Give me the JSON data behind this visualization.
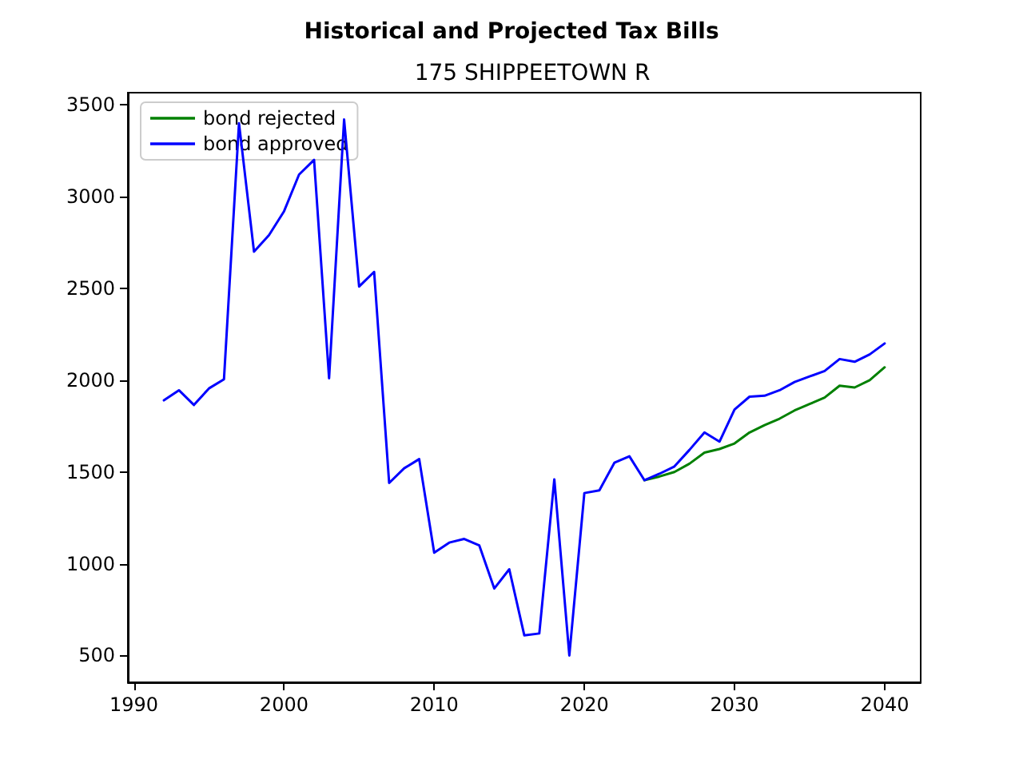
{
  "chart_data": {
    "type": "line",
    "title": "Historical and Projected Tax Bills",
    "subtitle": "175 SHIPPEETOWN R",
    "x": [
      1992,
      1993,
      1994,
      1995,
      1996,
      1997,
      1998,
      1999,
      2000,
      2001,
      2002,
      2003,
      2004,
      2005,
      2006,
      2007,
      2008,
      2009,
      2010,
      2011,
      2012,
      2013,
      2014,
      2015,
      2016,
      2017,
      2018,
      2019,
      2020,
      2021,
      2022,
      2023,
      2024,
      2025,
      2026,
      2027,
      2028,
      2029,
      2030,
      2031,
      2032,
      2033,
      2034,
      2035,
      2036,
      2037,
      2038,
      2039,
      2040
    ],
    "series": [
      {
        "name": "bond rejected",
        "color": "#008000",
        "values": [
          null,
          null,
          null,
          null,
          null,
          null,
          null,
          null,
          null,
          null,
          null,
          null,
          null,
          null,
          null,
          null,
          null,
          null,
          null,
          null,
          null,
          null,
          null,
          null,
          null,
          null,
          null,
          null,
          null,
          null,
          null,
          null,
          1455,
          1475,
          1500,
          1545,
          1605,
          1625,
          1655,
          1715,
          1755,
          1790,
          1835,
          1870,
          1905,
          1970,
          1960,
          2000,
          2070
        ]
      },
      {
        "name": "bond approved",
        "color": "#0000ff",
        "values": [
          1890,
          1945,
          1865,
          1955,
          2005,
          3400,
          2700,
          2790,
          2920,
          3120,
          3200,
          2010,
          3420,
          2510,
          2590,
          1440,
          1520,
          1570,
          1060,
          1115,
          1135,
          1100,
          865,
          970,
          610,
          620,
          1460,
          500,
          1385,
          1400,
          1550,
          1585,
          1455,
          1490,
          1530,
          1620,
          1715,
          1665,
          1840,
          1910,
          1915,
          1945,
          1990,
          2020,
          2050,
          2115,
          2100,
          2140,
          2200
        ]
      }
    ],
    "xlim": [
      1989.6,
      2042.4
    ],
    "xticks": [
      1990,
      2000,
      2010,
      2020,
      2030,
      2040
    ],
    "ylim": [
      354,
      3566
    ],
    "yticks": [
      500,
      1000,
      1500,
      2000,
      2500,
      3000,
      3500
    ],
    "legend": "top left",
    "grid": false,
    "marker": "none",
    "line_style": "solid"
  }
}
